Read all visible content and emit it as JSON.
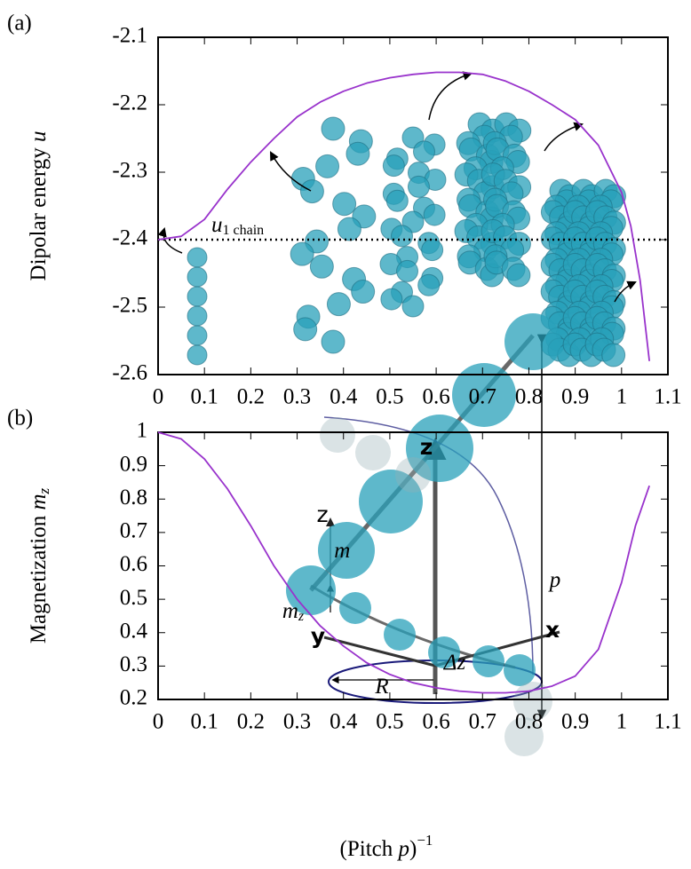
{
  "chart_data": [
    {
      "type": "line",
      "label": "(a)",
      "ylabel": "Dipolar energy ",
      "ylabel_symbol": "u",
      "x": [
        0,
        0.05,
        0.1,
        0.15,
        0.2,
        0.25,
        0.3,
        0.35,
        0.4,
        0.45,
        0.5,
        0.55,
        0.6,
        0.65,
        0.7,
        0.75,
        0.8,
        0.85,
        0.9,
        0.95,
        1.0,
        1.02,
        1.04,
        1.06
      ],
      "series": [
        {
          "color": "#9933cc",
          "values": [
            -2.4,
            -2.395,
            -2.37,
            -2.325,
            -2.285,
            -2.25,
            -2.218,
            -2.196,
            -2.18,
            -2.168,
            -2.16,
            -2.155,
            -2.152,
            -2.152,
            -2.155,
            -2.165,
            -2.18,
            -2.2,
            -2.222,
            -2.26,
            -2.33,
            -2.38,
            -2.46,
            -2.58
          ]
        }
      ],
      "hline": {
        "value": -2.4,
        "label": "u",
        "label_sub": "1 chain"
      },
      "xlim": [
        0,
        1.1
      ],
      "xticks": [
        0,
        0.1,
        0.2,
        0.3,
        0.4,
        0.5,
        0.6,
        0.7,
        0.8,
        0.9,
        1,
        1.1
      ],
      "ylim": [
        -2.6,
        -2.1
      ],
      "yticks": [
        -2.6,
        -2.5,
        -2.4,
        -2.3,
        -2.2,
        -2.1
      ]
    },
    {
      "type": "line",
      "label": "(b)",
      "ylabel": "Magnetization ",
      "ylabel_symbol": "m",
      "ylabel_sub": "z",
      "xlabel": "(Pitch ",
      "xlabel_symbol": "p",
      "xlabel_end": ")",
      "xlabel_sup": "−1",
      "x": [
        0,
        0.05,
        0.1,
        0.15,
        0.2,
        0.25,
        0.3,
        0.35,
        0.4,
        0.45,
        0.5,
        0.55,
        0.6,
        0.65,
        0.7,
        0.75,
        0.8,
        0.85,
        0.9,
        0.95,
        1.0,
        1.03,
        1.06
      ],
      "series": [
        {
          "color": "#9933cc",
          "values": [
            1.0,
            0.98,
            0.92,
            0.83,
            0.72,
            0.6,
            0.5,
            0.42,
            0.36,
            0.31,
            0.275,
            0.25,
            0.235,
            0.225,
            0.22,
            0.22,
            0.225,
            0.24,
            0.27,
            0.35,
            0.55,
            0.72,
            0.84
          ]
        }
      ],
      "inset_labels": [
        {
          "text": "z"
        },
        {
          "text": "z"
        },
        {
          "text": "m⃗"
        },
        {
          "text": "m",
          "sub": "z"
        },
        {
          "text": "p"
        },
        {
          "text": "R"
        },
        {
          "text": "Δz"
        },
        {
          "text": "y"
        },
        {
          "text": "x"
        }
      ],
      "xlim": [
        0,
        1.1
      ],
      "xticks": [
        0,
        0.1,
        0.2,
        0.3,
        0.4,
        0.5,
        0.6,
        0.7,
        0.8,
        0.9,
        1,
        1.1
      ],
      "ylim": [
        0.2,
        1
      ],
      "yticks": [
        0.2,
        0.3,
        0.4,
        0.5,
        0.6,
        0.7,
        0.8,
        0.9,
        1
      ]
    }
  ]
}
